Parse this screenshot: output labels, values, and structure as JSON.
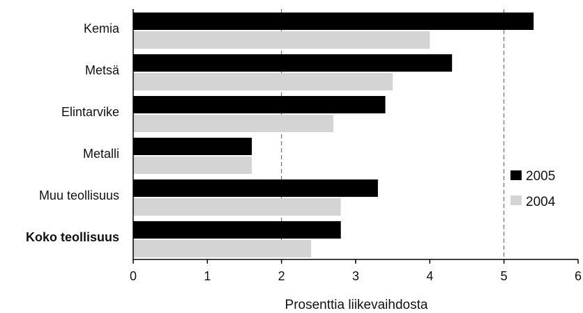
{
  "chart_data": {
    "type": "bar",
    "orientation": "horizontal",
    "categories": [
      "Kemia",
      "Metsä",
      "Elintarvike",
      "Metalli",
      "Muu teollisuus",
      "Koko teollisuus"
    ],
    "bold_categories": [
      "Koko teollisuus"
    ],
    "series": [
      {
        "name": "2005",
        "values": [
          5.4,
          4.3,
          3.4,
          1.6,
          3.3,
          2.8
        ],
        "color": "#000000"
      },
      {
        "name": "2004",
        "values": [
          4.0,
          3.5,
          2.7,
          1.6,
          2.8,
          2.4
        ],
        "color": "#d4d4d4"
      }
    ],
    "xlabel": "Prosenttia liikevaihdosta",
    "ylabel": "",
    "xlim": [
      0,
      6
    ],
    "xticks": [
      "0",
      "1",
      "2",
      "3",
      "4",
      "5",
      "6"
    ],
    "grid": "vertical dashed at 2 and 5",
    "legend_position": "right"
  }
}
